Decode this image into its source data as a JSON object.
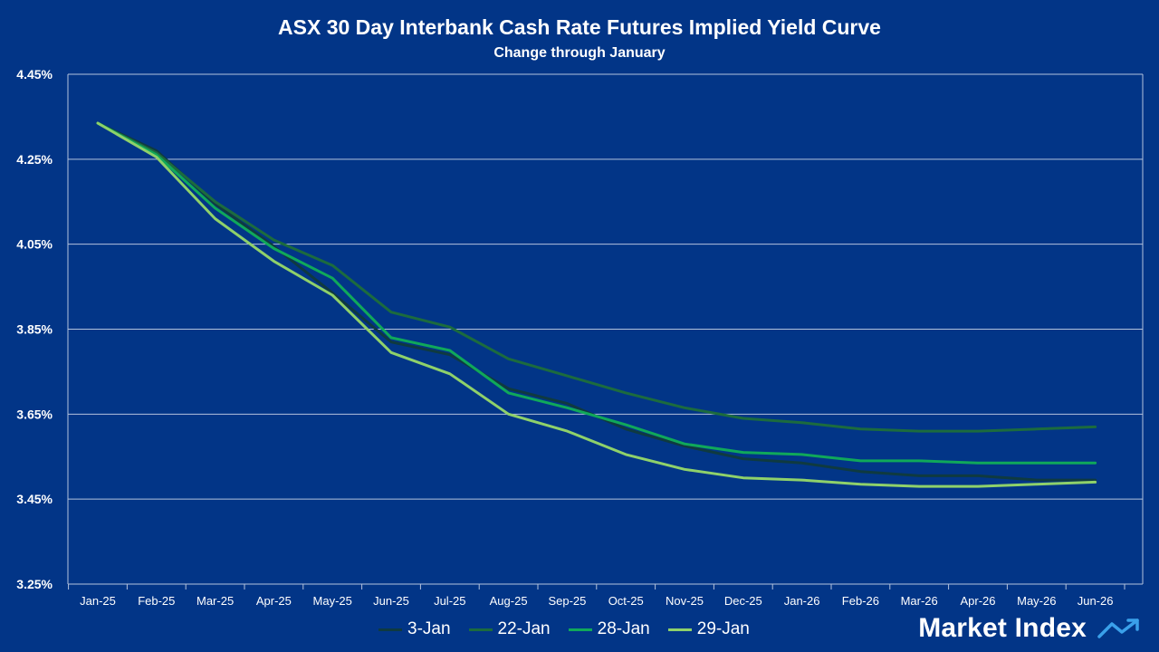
{
  "chart_data": {
    "type": "line",
    "title": "ASX 30 Day Interbank Cash Rate Futures Implied Yield Curve",
    "subtitle": "Change through January",
    "xlabel": "",
    "ylabel": "",
    "ylim": [
      3.25,
      4.45
    ],
    "yticks": [
      "4.45%",
      "4.25%",
      "4.05%",
      "3.85%",
      "3.65%",
      "3.45%",
      "3.25%"
    ],
    "ytick_values": [
      4.45,
      4.25,
      4.05,
      3.85,
      3.65,
      3.45,
      3.25
    ],
    "grid": true,
    "legend_position": "bottom",
    "categories": [
      "Jan-25",
      "Feb-25",
      "Mar-25",
      "Apr-25",
      "May-25",
      "Jun-25",
      "Jul-25",
      "Aug-25",
      "Sep-25",
      "Oct-25",
      "Nov-25",
      "Dec-25",
      "Jan-26",
      "Feb-26",
      "Mar-26",
      "Apr-26",
      "May-26",
      "Jun-26"
    ],
    "series": [
      {
        "name": "3-Jan",
        "color": "#0f3a40",
        "values": [
          4.335,
          4.27,
          4.145,
          4.045,
          3.935,
          3.82,
          3.79,
          3.71,
          3.675,
          3.615,
          3.575,
          3.545,
          3.535,
          3.515,
          3.505,
          3.505,
          3.495,
          3.495
        ]
      },
      {
        "name": "22-Jan",
        "color": "#1c6b3e",
        "values": [
          4.335,
          4.265,
          4.15,
          4.06,
          4.0,
          3.89,
          3.855,
          3.78,
          3.74,
          3.7,
          3.665,
          3.64,
          3.63,
          3.615,
          3.61,
          3.61,
          3.615,
          3.62
        ]
      },
      {
        "name": "28-Jan",
        "color": "#10a85a",
        "values": [
          4.335,
          4.26,
          4.135,
          4.04,
          3.97,
          3.83,
          3.8,
          3.7,
          3.665,
          3.625,
          3.58,
          3.56,
          3.555,
          3.54,
          3.54,
          3.535,
          3.535,
          3.535
        ]
      },
      {
        "name": "29-Jan",
        "color": "#8fd16a",
        "values": [
          4.335,
          4.255,
          4.11,
          4.01,
          3.93,
          3.795,
          3.745,
          3.65,
          3.61,
          3.555,
          3.52,
          3.5,
          3.495,
          3.485,
          3.48,
          3.48,
          3.485,
          3.49
        ]
      }
    ]
  },
  "brand": {
    "name": "Market Index"
  },
  "colors": {
    "background": "#023587",
    "grid": "#9fb0cf",
    "text": "#ffffff"
  }
}
